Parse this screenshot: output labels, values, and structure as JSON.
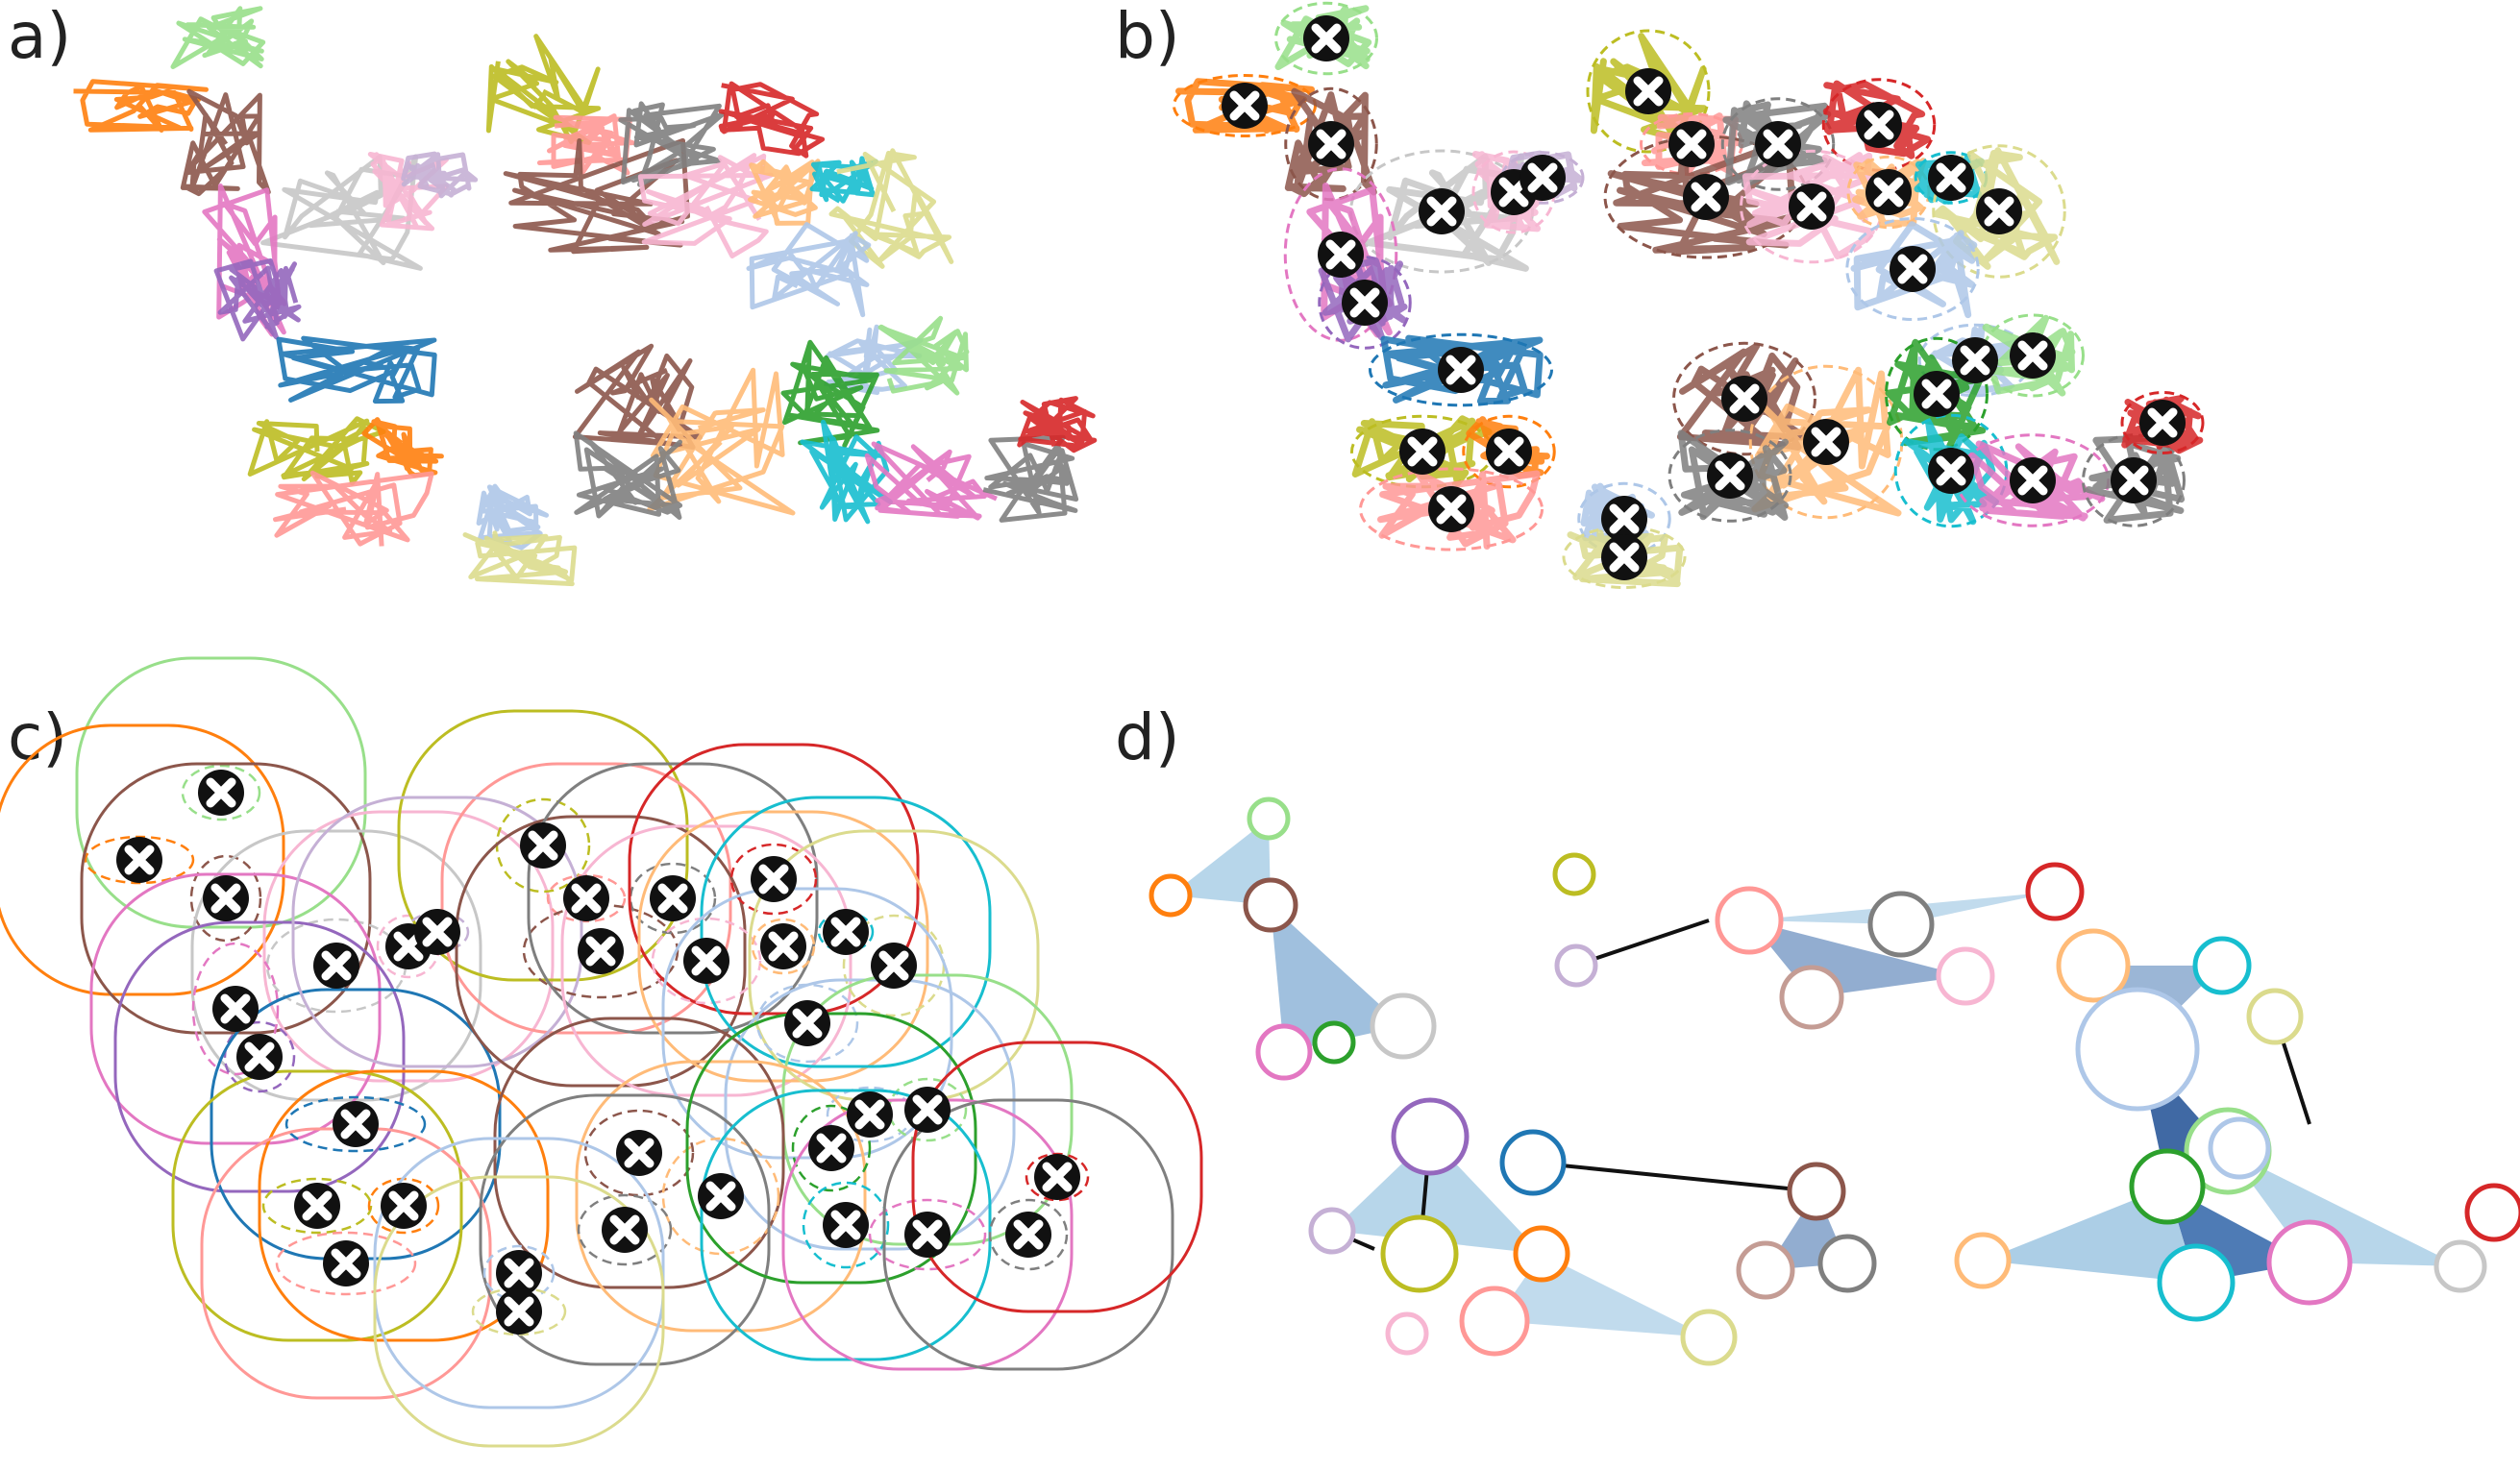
{
  "panels": [
    {
      "id": "a",
      "label": "a)"
    },
    {
      "id": "b",
      "label": "b)"
    },
    {
      "id": "c",
      "label": "c)"
    },
    {
      "id": "d",
      "label": "d)"
    }
  ],
  "palette": [
    "#1f77b4",
    "#ff7f0e",
    "#2ca02c",
    "#d62728",
    "#9467bd",
    "#8c564b",
    "#e377c2",
    "#7f7f7f",
    "#bcbd22",
    "#17becf",
    "#aec7e8",
    "#ffbb78",
    "#98df8a",
    "#ff9896",
    "#c5b0d5",
    "#c49c94",
    "#f7b6d2",
    "#c7c7c7",
    "#dbdb8d",
    "#9edae5"
  ],
  "marker_icon": "x-cross-icon",
  "node_icon": "circle-node-icon"
}
